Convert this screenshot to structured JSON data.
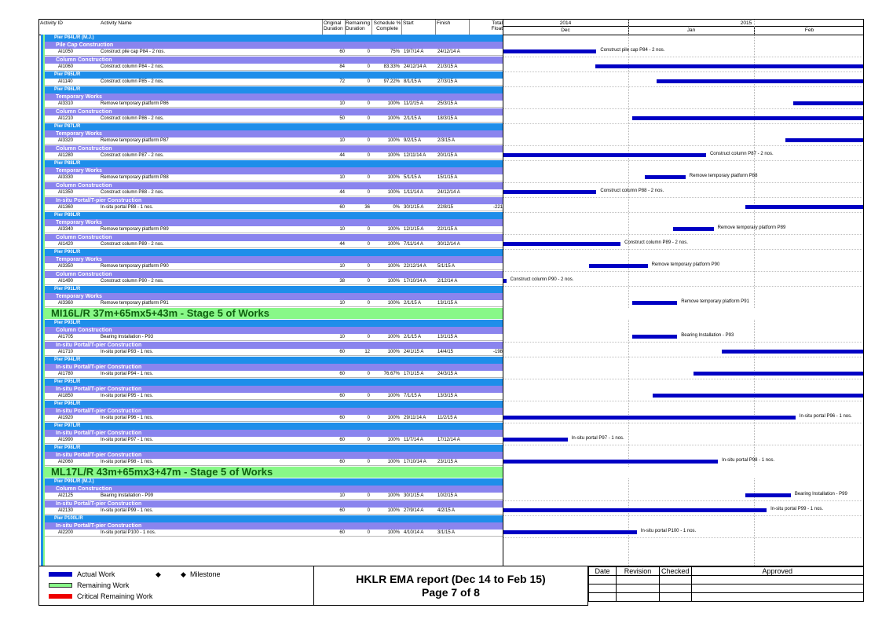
{
  "header": {
    "activity_id": "Activity ID",
    "activity_name": "Activity Name",
    "original_duration": "Original Duration",
    "remaining_duration": "Remaining Duration",
    "schedule_pct": "Schedule % Complete",
    "start": "Start",
    "finish": "Finish",
    "total_float": "Total Float",
    "year_2014": "2014",
    "year_2015": "2015",
    "month_dec": "Dec",
    "month_jan": "Jan",
    "month_feb": "Feb"
  },
  "rows": [
    {
      "kind": "pier",
      "label": "Pier P84L/R (M.J.)"
    },
    {
      "kind": "cat",
      "label": "Pile Cap Construction"
    },
    {
      "kind": "act",
      "id": "AI1050",
      "name": "Construct pile cap P84 - 2 nos.",
      "od": "60",
      "rd": "0",
      "pct": "75%",
      "start": "19/7/14 A",
      "finish": "24/12/14 A",
      "float": "",
      "bar_start": 0,
      "bar_end": 0.258,
      "label_text": "Construct pile cap P84 - 2 nos."
    },
    {
      "kind": "cat",
      "label": "Column Construction"
    },
    {
      "kind": "act",
      "id": "AI1060",
      "name": "Construct column P84 - 2 nos.",
      "od": "84",
      "rd": "0",
      "pct": "83.33%",
      "start": "24/12/14 A",
      "finish": "21/3/15 A",
      "float": "",
      "bar_start": 0.255,
      "bar_end": 1,
      "label_text": ""
    },
    {
      "kind": "pier",
      "label": "Pier P85L/R"
    },
    {
      "kind": "act",
      "id": "AI1140",
      "name": "Construct column P85 - 2 nos.",
      "od": "72",
      "rd": "0",
      "pct": "97.22%",
      "start": "8/1/15 A",
      "finish": "27/3/15 A",
      "float": "",
      "bar_start": 0.425,
      "bar_end": 1,
      "label_text": ""
    },
    {
      "kind": "pier",
      "label": "Pier P86L/R"
    },
    {
      "kind": "cat",
      "label": "Temporary Works"
    },
    {
      "kind": "act",
      "id": "AI3310",
      "name": "Remove temporary platform P86",
      "od": "10",
      "rd": "0",
      "pct": "100%",
      "start": "11/2/15 A",
      "finish": "25/3/15 A",
      "float": "",
      "bar_start": 0.805,
      "bar_end": 1,
      "label_text": ""
    },
    {
      "kind": "cat",
      "label": "Column Construction"
    },
    {
      "kind": "act",
      "id": "AI1210",
      "name": "Construct column P86 - 2 nos.",
      "od": "50",
      "rd": "0",
      "pct": "100%",
      "start": "2/1/15 A",
      "finish": "18/3/15 A",
      "float": "",
      "bar_start": 0.357,
      "bar_end": 1,
      "label_text": ""
    },
    {
      "kind": "pier",
      "label": "Pier P87L/R"
    },
    {
      "kind": "cat",
      "label": "Temporary Works"
    },
    {
      "kind": "act",
      "id": "AI3320",
      "name": "Remove temporary platform P87",
      "od": "10",
      "rd": "0",
      "pct": "100%",
      "start": "9/2/15 A",
      "finish": "2/3/15 A",
      "float": "",
      "bar_start": 0.782,
      "bar_end": 1,
      "label_text": ""
    },
    {
      "kind": "cat",
      "label": "Column Construction"
    },
    {
      "kind": "act",
      "id": "AI1280",
      "name": "Construct column P87 - 2 nos.",
      "od": "44",
      "rd": "0",
      "pct": "100%",
      "start": "12/11/14 A",
      "finish": "20/1/15 A",
      "float": "",
      "bar_start": 0,
      "bar_end": 0.562,
      "label_text": "Construct column P87 - 2 nos."
    },
    {
      "kind": "pier",
      "label": "Pier P88L/R"
    },
    {
      "kind": "cat",
      "label": "Temporary Works"
    },
    {
      "kind": "act",
      "id": "AI3330",
      "name": "Remove temporary platform P88",
      "od": "10",
      "rd": "0",
      "pct": "100%",
      "start": "5/1/15 A",
      "finish": "15/1/15 A",
      "float": "",
      "bar_start": 0.392,
      "bar_end": 0.505,
      "label_text": "Remove temporary platform P88"
    },
    {
      "kind": "cat",
      "label": "Column Construction"
    },
    {
      "kind": "act",
      "id": "AI1350",
      "name": "Construct column P88 - 2 nos.",
      "od": "44",
      "rd": "0",
      "pct": "100%",
      "start": "1/11/14 A",
      "finish": "24/12/14 A",
      "float": "",
      "bar_start": 0,
      "bar_end": 0.258,
      "label_text": "Construct column P88 - 2 nos."
    },
    {
      "kind": "cat",
      "label": "In-situ Portal/T-pier Construction"
    },
    {
      "kind": "act",
      "id": "AI1360",
      "name": "In-situ portal P88 - 1 nos.",
      "od": "60",
      "rd": "36",
      "pct": "0%",
      "start": "30/1/15 A",
      "finish": "22/8/15",
      "float": "-221",
      "bar_start": 0.67,
      "bar_end": 1,
      "label_text": ""
    },
    {
      "kind": "pier",
      "label": "Pier P89L/R"
    },
    {
      "kind": "cat",
      "label": "Temporary Works"
    },
    {
      "kind": "act",
      "id": "AI3340",
      "name": "Remove temporary platform P89",
      "od": "10",
      "rd": "0",
      "pct": "100%",
      "start": "12/1/15 A",
      "finish": "22/1/15 A",
      "float": "",
      "bar_start": 0.47,
      "bar_end": 0.583,
      "label_text": "Remove temporary platform P89"
    },
    {
      "kind": "cat",
      "label": "Column Construction"
    },
    {
      "kind": "act",
      "id": "AI1420",
      "name": "Construct column P89 - 2 nos.",
      "od": "44",
      "rd": "0",
      "pct": "100%",
      "start": "7/11/14 A",
      "finish": "30/12/14 A",
      "float": "",
      "bar_start": 0,
      "bar_end": 0.325,
      "label_text": "Construct column P89 - 2 nos."
    },
    {
      "kind": "pier",
      "label": "Pier P90L/R"
    },
    {
      "kind": "cat",
      "label": "Temporary Works"
    },
    {
      "kind": "act",
      "id": "AI3350",
      "name": "Remove temporary platform P90",
      "od": "10",
      "rd": "0",
      "pct": "100%",
      "start": "22/12/14 A",
      "finish": "5/1/15 A",
      "float": "",
      "bar_start": 0.237,
      "bar_end": 0.4,
      "label_text": "Remove temporary platform P90"
    },
    {
      "kind": "cat",
      "label": "Column Construction"
    },
    {
      "kind": "act",
      "id": "AI1490",
      "name": "Construct column P90 - 2 nos.",
      "od": "38",
      "rd": "0",
      "pct": "100%",
      "start": "17/10/14 A",
      "finish": "2/12/14 A",
      "float": "",
      "bar_start": 0,
      "bar_end": 0.008,
      "label_text": "Construct column P90 - 2 nos."
    },
    {
      "kind": "pier",
      "label": "Pier P91L/R"
    },
    {
      "kind": "cat",
      "label": "Temporary Works"
    },
    {
      "kind": "act",
      "id": "AI3360",
      "name": "Remove temporary platform P91",
      "od": "10",
      "rd": "0",
      "pct": "100%",
      "start": "2/1/15 A",
      "finish": "13/1/15 A",
      "float": "",
      "bar_start": 0.357,
      "bar_end": 0.482,
      "label_text": "Remove temporary platform P91"
    },
    {
      "kind": "stage",
      "label": "MI16L/R 37m+65mx5+43m - Stage 5 of Works"
    },
    {
      "kind": "pier",
      "label": "Pier P93L/R"
    },
    {
      "kind": "cat",
      "label": "Column Construction"
    },
    {
      "kind": "act",
      "id": "AI1705",
      "name": "Bearing Installation - P93",
      "od": "10",
      "rd": "0",
      "pct": "100%",
      "start": "2/1/15 A",
      "finish": "13/1/15 A",
      "float": "",
      "bar_start": 0.357,
      "bar_end": 0.482,
      "label_text": "Bearing Installation - P93"
    },
    {
      "kind": "cat",
      "label": "In-situ Portal/T-pier Construction"
    },
    {
      "kind": "act",
      "id": "AI1710",
      "name": "In-situ portal P93 - 1 nos.",
      "od": "60",
      "rd": "12",
      "pct": "100%",
      "start": "24/1/15 A",
      "finish": "14/4/15",
      "float": "-198",
      "bar_start": 0.605,
      "bar_end": 1,
      "label_text": ""
    },
    {
      "kind": "pier",
      "label": "Pier P94L/R"
    },
    {
      "kind": "cat",
      "label": "In-situ Portal/T-pier Construction"
    },
    {
      "kind": "act",
      "id": "AI1780",
      "name": "In-situ portal P94 - 1 nos.",
      "od": "60",
      "rd": "0",
      "pct": "76.67%",
      "start": "17/1/15 A",
      "finish": "24/3/15 A",
      "float": "",
      "bar_start": 0.527,
      "bar_end": 1,
      "label_text": ""
    },
    {
      "kind": "pier",
      "label": "Pier P95L/R"
    },
    {
      "kind": "cat",
      "label": "In-situ Portal/T-pier Construction"
    },
    {
      "kind": "act",
      "id": "AI1850",
      "name": "In-situ portal P95 - 1 nos.",
      "od": "60",
      "rd": "0",
      "pct": "100%",
      "start": "7/1/15 A",
      "finish": "13/3/15 A",
      "float": "",
      "bar_start": 0.413,
      "bar_end": 1,
      "label_text": ""
    },
    {
      "kind": "pier",
      "label": "Pier P96L/R"
    },
    {
      "kind": "cat",
      "label": "In-situ Portal/T-pier Construction"
    },
    {
      "kind": "act",
      "id": "AI1920",
      "name": "In-situ portal P96 - 1 nos.",
      "od": "60",
      "rd": "0",
      "pct": "100%",
      "start": "29/11/14 A",
      "finish": "11/2/15 A",
      "float": "",
      "bar_start": 0,
      "bar_end": 0.81,
      "label_text": "In-situ portal P96 - 1 nos."
    },
    {
      "kind": "pier",
      "label": "Pier P97L/R"
    },
    {
      "kind": "cat",
      "label": "In-situ Portal/T-pier Construction"
    },
    {
      "kind": "act",
      "id": "AI1990",
      "name": "In-situ portal P97 - 1 nos.",
      "od": "60",
      "rd": "0",
      "pct": "100%",
      "start": "11/7/14 A",
      "finish": "17/12/14 A",
      "float": "",
      "bar_start": 0,
      "bar_end": 0.178,
      "label_text": "In-situ portal P97 - 1 nos."
    },
    {
      "kind": "pier",
      "label": "Pier P98L/R"
    },
    {
      "kind": "cat",
      "label": "In-situ Portal/T-pier Construction"
    },
    {
      "kind": "act",
      "id": "AI2060",
      "name": "In-situ portal P98 - 1 nos.",
      "od": "60",
      "rd": "0",
      "pct": "100%",
      "start": "17/10/14 A",
      "finish": "23/1/15 A",
      "float": "",
      "bar_start": 0,
      "bar_end": 0.595,
      "label_text": "In-situ portal P98 - 1 nos."
    },
    {
      "kind": "stage",
      "label": "ML17L/R 43m+65mx3+47m - Stage 5 of Works"
    },
    {
      "kind": "pier",
      "label": "Pier P99L/R (M.J.)"
    },
    {
      "kind": "cat",
      "label": "Column Construction"
    },
    {
      "kind": "act",
      "id": "AI2125",
      "name": "Bearing Installation - P99",
      "od": "10",
      "rd": "0",
      "pct": "100%",
      "start": "30/1/15 A",
      "finish": "10/2/15 A",
      "float": "",
      "bar_start": 0.67,
      "bar_end": 0.797,
      "label_text": "Bearing Installation - P99"
    },
    {
      "kind": "cat",
      "label": "In-situ Portal/T-pier Construction"
    },
    {
      "kind": "act",
      "id": "AI2130",
      "name": "In-situ portal P99 - 1 nos.",
      "od": "60",
      "rd": "0",
      "pct": "100%",
      "start": "27/9/14 A",
      "finish": "4/2/15 A",
      "float": "",
      "bar_start": 0,
      "bar_end": 0.73,
      "label_text": "In-situ portal P99 - 1 nos."
    },
    {
      "kind": "pier",
      "label": "Pier P100L/R"
    },
    {
      "kind": "cat",
      "label": "In-situ Portal/T-pier Construction"
    },
    {
      "kind": "act",
      "id": "AI2200",
      "name": "In-situ portal P100 - 1 nos.",
      "od": "60",
      "rd": "0",
      "pct": "100%",
      "start": "4/10/14 A",
      "finish": "3/1/15 A",
      "float": "",
      "bar_start": 0,
      "bar_end": 0.37,
      "label_text": "In-situ portal P100 - 1 nos."
    }
  ],
  "legend": {
    "actual_work": "Actual Work",
    "remaining_work": "Remaining Work",
    "critical_remaining_work": "Critical Remaining Work",
    "milestone": "Milestone",
    "colors": {
      "actual": "#0000c4",
      "remaining": "#88f888",
      "critical": "#ee0000"
    }
  },
  "title": {
    "line1": "HKLR EMA report (Dec 14 to Feb 15)",
    "line2": "Page 7 of 8"
  },
  "approval": {
    "date": "Date",
    "revision": "Revision",
    "checked": "Checked",
    "approved": "Approved"
  }
}
